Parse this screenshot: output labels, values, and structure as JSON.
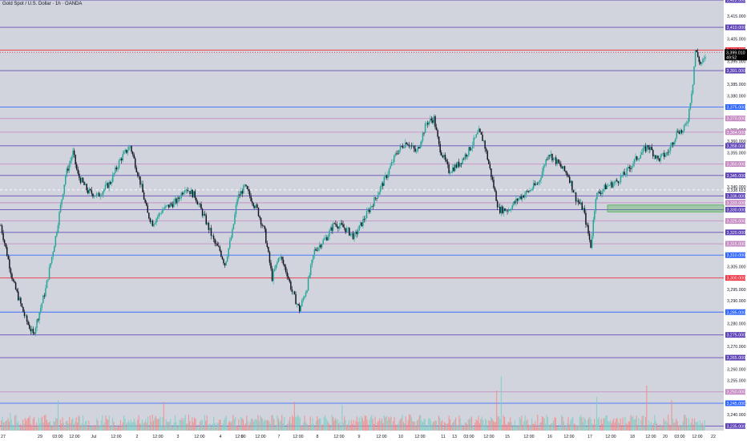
{
  "header": {
    "title": "Gold Spot / U.S. Dollar · 1h · OANDA"
  },
  "colors": {
    "background": "#d1d4dc",
    "axis_bg": "#ffffff",
    "bull": "#26a69a",
    "bear": "#131722",
    "vol_up": "#7fcfc5",
    "vol_down": "#f28b8b",
    "purple": "#5b3fb5",
    "blue": "#2962ff",
    "red": "#f23645",
    "pink": "#c58ac2",
    "zone": "#4caf50"
  },
  "price_axis": {
    "min": 3233,
    "max": 3422,
    "ticks": [
      3415,
      3405,
      3395,
      3385,
      3380,
      3365,
      3360,
      3355,
      3340,
      3305,
      3295,
      3290,
      3280,
      3270,
      3260,
      3255,
      3245,
      3240
    ],
    "decimals": ".000"
  },
  "levels": [
    {
      "price": 3422,
      "color": "purple",
      "label": "3,422.000"
    },
    {
      "price": 3410,
      "color": "purple",
      "label": "3,410.000"
    },
    {
      "price": 3400,
      "color": "red",
      "label": "3,400.000"
    },
    {
      "price": 3391,
      "color": "purple",
      "label": "3,391.000"
    },
    {
      "price": 3375,
      "color": "blue",
      "label": "3,375.000"
    },
    {
      "price": 3370,
      "color": "pink",
      "label": "3,370.000"
    },
    {
      "price": 3364,
      "color": "pink",
      "label": "3,364.000"
    },
    {
      "price": 3358,
      "color": "purple",
      "label": "3,358.000"
    },
    {
      "price": 3350,
      "color": "pink",
      "label": "3,350.000"
    },
    {
      "price": 3345,
      "color": "purple",
      "label": "3,345.000"
    },
    {
      "price": 3336,
      "color": "purple",
      "label": "3,336.000"
    },
    {
      "price": 3333,
      "color": "pink",
      "label": "3,333.000"
    },
    {
      "price": 3330,
      "color": "purple",
      "label": "3,330.000"
    },
    {
      "price": 3325,
      "color": "pink",
      "label": "3,325.000"
    },
    {
      "price": 3320,
      "color": "purple",
      "label": "3,320.000"
    },
    {
      "price": 3315,
      "color": "pink",
      "label": "3,315.000"
    },
    {
      "price": 3310,
      "color": "blue",
      "label": "3,310.000"
    },
    {
      "price": 3300,
      "color": "red",
      "label": "3,300.000"
    },
    {
      "price": 3285,
      "color": "blue",
      "label": "3,285.000"
    },
    {
      "price": 3275,
      "color": "purple",
      "label": "3,275.000"
    },
    {
      "price": 3265,
      "color": "purple",
      "label": "3,265.000"
    },
    {
      "price": 3250,
      "color": "pink",
      "label": "3,250.000"
    },
    {
      "price": 3245,
      "color": "blue",
      "label": "3,245.000"
    },
    {
      "price": 3235,
      "color": "purple",
      "label": "3,235.000"
    }
  ],
  "current_price": {
    "price": 3399.01,
    "label": "3,399.010",
    "countdown": "49:52"
  },
  "dashed_level": {
    "price": 3338.653,
    "label": "3,338.653"
  },
  "zone": {
    "top": 3332,
    "bottom": 3329
  },
  "time_axis": {
    "labels": [
      "27",
      "29",
      "03:00",
      "12:00",
      "Jul",
      "12:00",
      "2",
      "12:00",
      "3",
      "12:00",
      "4",
      "12:00",
      "6",
      "12:00",
      "7",
      "12:00",
      "8",
      "12:00",
      "9",
      "12:00",
      "10",
      "12:00",
      "11",
      "13",
      "03:00",
      "12:00",
      "15",
      "12:00",
      "16",
      "12:00",
      "17",
      "12:00",
      "18",
      "12:00",
      "20",
      "03:00",
      "12:00",
      "22"
    ]
  },
  "chart_data": {
    "type": "candlestick",
    "title": "Gold Spot / U.S. Dollar · 1h · OANDA",
    "y_range": [
      3233,
      3422
    ],
    "anchors": [
      [
        0,
        3323
      ],
      [
        10,
        3298
      ],
      [
        20,
        3282
      ],
      [
        26,
        3275
      ],
      [
        30,
        3283
      ],
      [
        36,
        3295
      ],
      [
        44,
        3318
      ],
      [
        52,
        3345
      ],
      [
        58,
        3355
      ],
      [
        62,
        3345
      ],
      [
        70,
        3338
      ],
      [
        78,
        3336
      ],
      [
        88,
        3342
      ],
      [
        96,
        3352
      ],
      [
        104,
        3358
      ],
      [
        112,
        3342
      ],
      [
        118,
        3328
      ],
      [
        122,
        3324
      ],
      [
        130,
        3330
      ],
      [
        142,
        3334
      ],
      [
        148,
        3340
      ],
      [
        156,
        3336
      ],
      [
        164,
        3326
      ],
      [
        172,
        3315
      ],
      [
        176,
        3312
      ],
      [
        180,
        3306
      ],
      [
        186,
        3320
      ],
      [
        190,
        3335
      ],
      [
        196,
        3340
      ],
      [
        206,
        3330
      ],
      [
        212,
        3320
      ],
      [
        218,
        3300
      ],
      [
        224,
        3310
      ],
      [
        230,
        3302
      ],
      [
        234,
        3294
      ],
      [
        240,
        3286
      ],
      [
        246,
        3296
      ],
      [
        252,
        3312
      ],
      [
        262,
        3318
      ],
      [
        268,
        3324
      ],
      [
        276,
        3322
      ],
      [
        284,
        3318
      ],
      [
        292,
        3326
      ],
      [
        300,
        3334
      ],
      [
        310,
        3345
      ],
      [
        318,
        3355
      ],
      [
        326,
        3360
      ],
      [
        334,
        3355
      ],
      [
        342,
        3368
      ],
      [
        348,
        3370
      ],
      [
        352,
        3358
      ],
      [
        360,
        3347
      ],
      [
        368,
        3350
      ],
      [
        376,
        3356
      ],
      [
        384,
        3364
      ],
      [
        388,
        3360
      ],
      [
        394,
        3345
      ],
      [
        400,
        3330
      ],
      [
        408,
        3330
      ],
      [
        416,
        3335
      ],
      [
        424,
        3338
      ],
      [
        432,
        3342
      ],
      [
        440,
        3355
      ],
      [
        448,
        3350
      ],
      [
        456,
        3345
      ],
      [
        462,
        3335
      ],
      [
        468,
        3330
      ],
      [
        474,
        3314
      ],
      [
        478,
        3336
      ],
      [
        486,
        3340
      ],
      [
        494,
        3342
      ],
      [
        502,
        3346
      ],
      [
        510,
        3352
      ],
      [
        520,
        3358
      ],
      [
        528,
        3352
      ],
      [
        536,
        3355
      ],
      [
        544,
        3365
      ],
      [
        548,
        3364
      ],
      [
        552,
        3370
      ],
      [
        556,
        3386
      ],
      [
        558,
        3400
      ],
      [
        562,
        3394
      ],
      [
        566,
        3396
      ]
    ],
    "n_candles": 567,
    "volume_spikes": [
      [
        8,
        14
      ],
      [
        50,
        30
      ],
      [
        143,
        28
      ],
      [
        258,
        28
      ],
      [
        300,
        24
      ],
      [
        436,
        42
      ],
      [
        440,
        60
      ],
      [
        524,
        34
      ],
      [
        568,
        48
      ],
      [
        590,
        30
      ]
    ]
  }
}
